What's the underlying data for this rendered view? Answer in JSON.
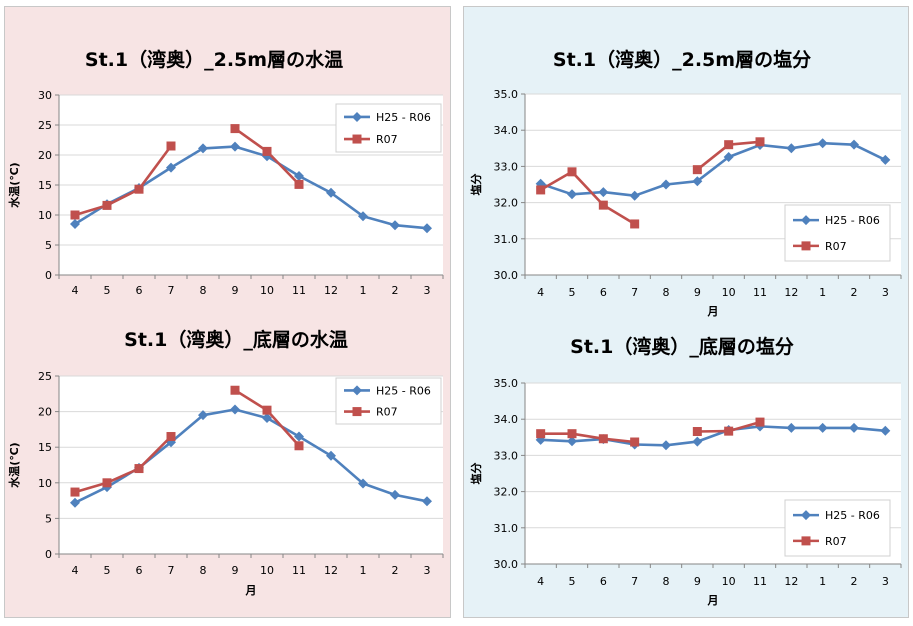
{
  "colors": {
    "h25_r06": "#4f81bd",
    "r07": "#c0504d",
    "grid": "#d9d9d9",
    "left_panel": "#f7e4e4",
    "right_panel": "#e6f2f7"
  },
  "chart_data": [
    {
      "id": "temp-25m",
      "type": "line",
      "title": "St.1（湾奥）_2.5m層の水温",
      "xlabel": "",
      "ylabel": "水温(℃)",
      "categories": [
        "4",
        "5",
        "6",
        "7",
        "8",
        "9",
        "10",
        "11",
        "12",
        "1",
        "2",
        "3"
      ],
      "ylim": [
        0,
        30
      ],
      "yticks": [
        0,
        5,
        10,
        15,
        20,
        25,
        30
      ],
      "ytick_decimals": 0,
      "legend": "top-right",
      "grid": true,
      "series": [
        {
          "name": "H25 - R06",
          "color": "#4f81bd",
          "marker": "diamond",
          "values": [
            8.5,
            11.8,
            14.5,
            17.9,
            21.1,
            21.4,
            19.8,
            16.5,
            13.7,
            9.8,
            8.3,
            7.8
          ]
        },
        {
          "name": "R07",
          "color": "#c0504d",
          "marker": "square",
          "values": [
            10.0,
            11.6,
            14.3,
            21.5,
            null,
            24.4,
            20.6,
            15.1,
            null,
            null,
            null,
            null
          ]
        }
      ]
    },
    {
      "id": "temp-bottom",
      "type": "line",
      "title": "St.1（湾奥）_底層の水温",
      "xlabel": "月",
      "ylabel": "水温(℃)",
      "categories": [
        "4",
        "5",
        "6",
        "7",
        "8",
        "9",
        "10",
        "11",
        "12",
        "1",
        "2",
        "3"
      ],
      "ylim": [
        0,
        25
      ],
      "yticks": [
        0,
        5,
        10,
        15,
        20,
        25
      ],
      "ytick_decimals": 0,
      "legend": "top-right",
      "grid": true,
      "series": [
        {
          "name": "H25 - R06",
          "color": "#4f81bd",
          "marker": "diamond",
          "values": [
            7.2,
            9.4,
            12.1,
            15.7,
            19.5,
            20.3,
            19.1,
            16.5,
            13.8,
            9.9,
            8.3,
            7.4
          ]
        },
        {
          "name": "R07",
          "color": "#c0504d",
          "marker": "square",
          "values": [
            8.7,
            10.0,
            12.0,
            16.5,
            null,
            23.0,
            20.2,
            15.2,
            null,
            null,
            null,
            null
          ]
        }
      ]
    },
    {
      "id": "sal-25m",
      "type": "line",
      "title": "St.1（湾奥）_2.5m層の塩分",
      "xlabel": "月",
      "ylabel": "塩分",
      "categories": [
        "4",
        "5",
        "6",
        "7",
        "8",
        "9",
        "10",
        "11",
        "12",
        "1",
        "2",
        "3"
      ],
      "ylim": [
        30,
        35
      ],
      "yticks": [
        30,
        31,
        32,
        33,
        34,
        35
      ],
      "ytick_decimals": 1,
      "legend": "bottom-right",
      "grid": true,
      "series": [
        {
          "name": "H25 - R06",
          "color": "#4f81bd",
          "marker": "diamond",
          "values": [
            32.52,
            32.23,
            32.29,
            32.19,
            32.5,
            32.59,
            33.26,
            33.59,
            33.5,
            33.64,
            33.6,
            33.18
          ]
        },
        {
          "name": "R07",
          "color": "#c0504d",
          "marker": "square",
          "values": [
            32.35,
            32.85,
            31.93,
            31.41,
            null,
            32.91,
            33.6,
            33.68,
            null,
            null,
            null,
            null
          ]
        }
      ]
    },
    {
      "id": "sal-bottom",
      "type": "line",
      "title": "St.1（湾奥）_底層の塩分",
      "xlabel": "月",
      "ylabel": "塩分",
      "categories": [
        "4",
        "5",
        "6",
        "7",
        "8",
        "9",
        "10",
        "11",
        "12",
        "1",
        "2",
        "3"
      ],
      "ylim": [
        30,
        35
      ],
      "yticks": [
        30,
        31,
        32,
        33,
        34,
        35
      ],
      "ytick_decimals": 1,
      "legend": "bottom-right",
      "grid": true,
      "series": [
        {
          "name": "H25 - R06",
          "color": "#4f81bd",
          "marker": "diamond",
          "values": [
            33.43,
            33.39,
            33.45,
            33.3,
            33.28,
            33.38,
            33.7,
            33.8,
            33.76,
            33.76,
            33.76,
            33.68
          ]
        },
        {
          "name": "R07",
          "color": "#c0504d",
          "marker": "square",
          "values": [
            33.6,
            33.6,
            33.46,
            33.37,
            null,
            33.66,
            33.67,
            33.92,
            null,
            null,
            null,
            null
          ]
        }
      ]
    }
  ]
}
